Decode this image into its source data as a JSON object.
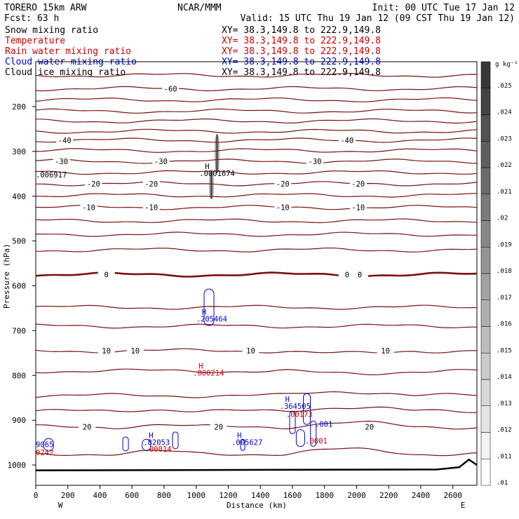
{
  "header": {
    "model": "TORERO  15km ARW",
    "forecast": "Fcst:   63 h",
    "center": "NCAR/MMM",
    "init": "Init: 00 UTC Tue 17 Jan 12",
    "valid": "Valid: 15 UTC Thu 19 Jan 12 (09 CST Thu 19 Jan 12)"
  },
  "legend": [
    {
      "name": "Snow mixing ratio",
      "color": "#000000",
      "xy": "XY=  38.3,149.8 to 222.9,149.8"
    },
    {
      "name": "Temperature",
      "color": "#cc0000",
      "xy": "XY=  38.3,149.8 to 222.9,149.8"
    },
    {
      "name": "Rain water mixing ratio",
      "color": "#cc0000",
      "xy": "XY=  38.3,149.8 to 222.9,149.8"
    },
    {
      "name": "Cloud water mixing ratio",
      "color": "#0000cc",
      "xy": "XY=  38.3,149.8 to 222.9,149.8"
    },
    {
      "name": "Cloud ice mixing ratio",
      "color": "#000000",
      "xy": "XY=  38.3,149.8 to 222.9,149.8"
    }
  ],
  "colors": {
    "temperature": "#7a1010",
    "cloud_water": "#0000cc",
    "rain": "#cc0000",
    "snow": "#333333"
  },
  "chart_data": {
    "type": "contour",
    "xlabel": "Distance (km)",
    "ylabel": "Pressure (hPa)",
    "x_ticks": [
      0,
      200,
      400,
      600,
      800,
      1000,
      1200,
      1400,
      1600,
      1800,
      2000,
      2200,
      2400,
      2600
    ],
    "y_ticks": [
      200,
      300,
      400,
      500,
      600,
      700,
      800,
      900,
      1000
    ],
    "xlim": [
      0,
      2750
    ],
    "ylim": [
      1050,
      100
    ],
    "end_labels": {
      "left": "W",
      "right": "E"
    },
    "colorbar": {
      "unit": "g kg⁻¹",
      "ticks": [
        ".01",
        ".011",
        ".012",
        ".013",
        ".014",
        ".015",
        ".016",
        ".017",
        ".018",
        ".019",
        ".02",
        ".021",
        ".022",
        ".023",
        ".024",
        ".025"
      ]
    },
    "temperature_contours": [
      {
        "p": 130,
        "label": "",
        "label_x": []
      },
      {
        "p": 160,
        "label": "-60",
        "label_x": [
          840
        ]
      },
      {
        "p": 185,
        "label": "",
        "label_x": []
      },
      {
        "p": 210,
        "label": "",
        "label_x": []
      },
      {
        "p": 232,
        "label": "",
        "label_x": []
      },
      {
        "p": 255,
        "label": "",
        "label_x": []
      },
      {
        "p": 275,
        "label": "-40",
        "label_x": [
          180,
          1940
        ]
      },
      {
        "p": 298,
        "label": "",
        "label_x": []
      },
      {
        "p": 322,
        "label": "-30",
        "label_x": [
          160,
          780,
          1740
        ]
      },
      {
        "p": 347,
        "label": "",
        "label_x": []
      },
      {
        "p": 372,
        "label": "-20",
        "label_x": [
          360,
          720,
          1540,
          2010
        ]
      },
      {
        "p": 398,
        "label": "",
        "label_x": []
      },
      {
        "p": 425,
        "label": "-10",
        "label_x": [
          330,
          720,
          1540,
          2010
        ]
      },
      {
        "p": 455,
        "label": "",
        "label_x": []
      },
      {
        "p": 485,
        "label": "",
        "label_x": []
      },
      {
        "p": 520,
        "label": "",
        "label_x": []
      },
      {
        "p": 575,
        "label": "0",
        "label_x": [
          440,
          1940,
          2020
        ]
      },
      {
        "p": 648,
        "label": "",
        "label_x": []
      },
      {
        "p": 690,
        "label": "",
        "label_x": []
      },
      {
        "p": 745,
        "label": "10",
        "label_x": [
          440,
          620,
          1340,
          2180
        ]
      },
      {
        "p": 790,
        "label": "",
        "label_x": []
      },
      {
        "p": 845,
        "label": "",
        "label_x": []
      },
      {
        "p": 880,
        "label": "",
        "label_x": []
      },
      {
        "p": 915,
        "label": "20",
        "label_x": [
          320,
          1140,
          2080
        ]
      },
      {
        "p": 975,
        "label": "",
        "label_x": []
      }
    ],
    "snow_max": {
      "label": ".0001674",
      "x": 1020,
      "p": 355
    },
    "snow_min_edge": {
      "label": ".006917",
      "x": 0,
      "p": 358
    },
    "cloud_water_maxima": [
      {
        "label": ".205464",
        "x": 1000,
        "p": 680
      },
      {
        "label": ".364505",
        "x": 1520,
        "p": 875
      },
      {
        "label": ".001",
        "x": 1740,
        "p": 915
      },
      {
        "label": ".82053",
        "x": 670,
        "p": 955
      },
      {
        "label": ".005627",
        "x": 1220,
        "p": 955
      },
      {
        "label": "9065",
        "x": 0,
        "p": 960
      }
    ],
    "rain_maxima": [
      {
        "label": ".000214",
        "x": 980,
        "p": 800
      },
      {
        "label": ".00173",
        "x": 1560,
        "p": 893
      },
      {
        "label": ".00014",
        "x": 680,
        "p": 970
      },
      {
        "label": ".0001",
        "x": 1680,
        "p": 952
      },
      {
        "label": "0242",
        "x": 0,
        "p": 978
      }
    ]
  }
}
